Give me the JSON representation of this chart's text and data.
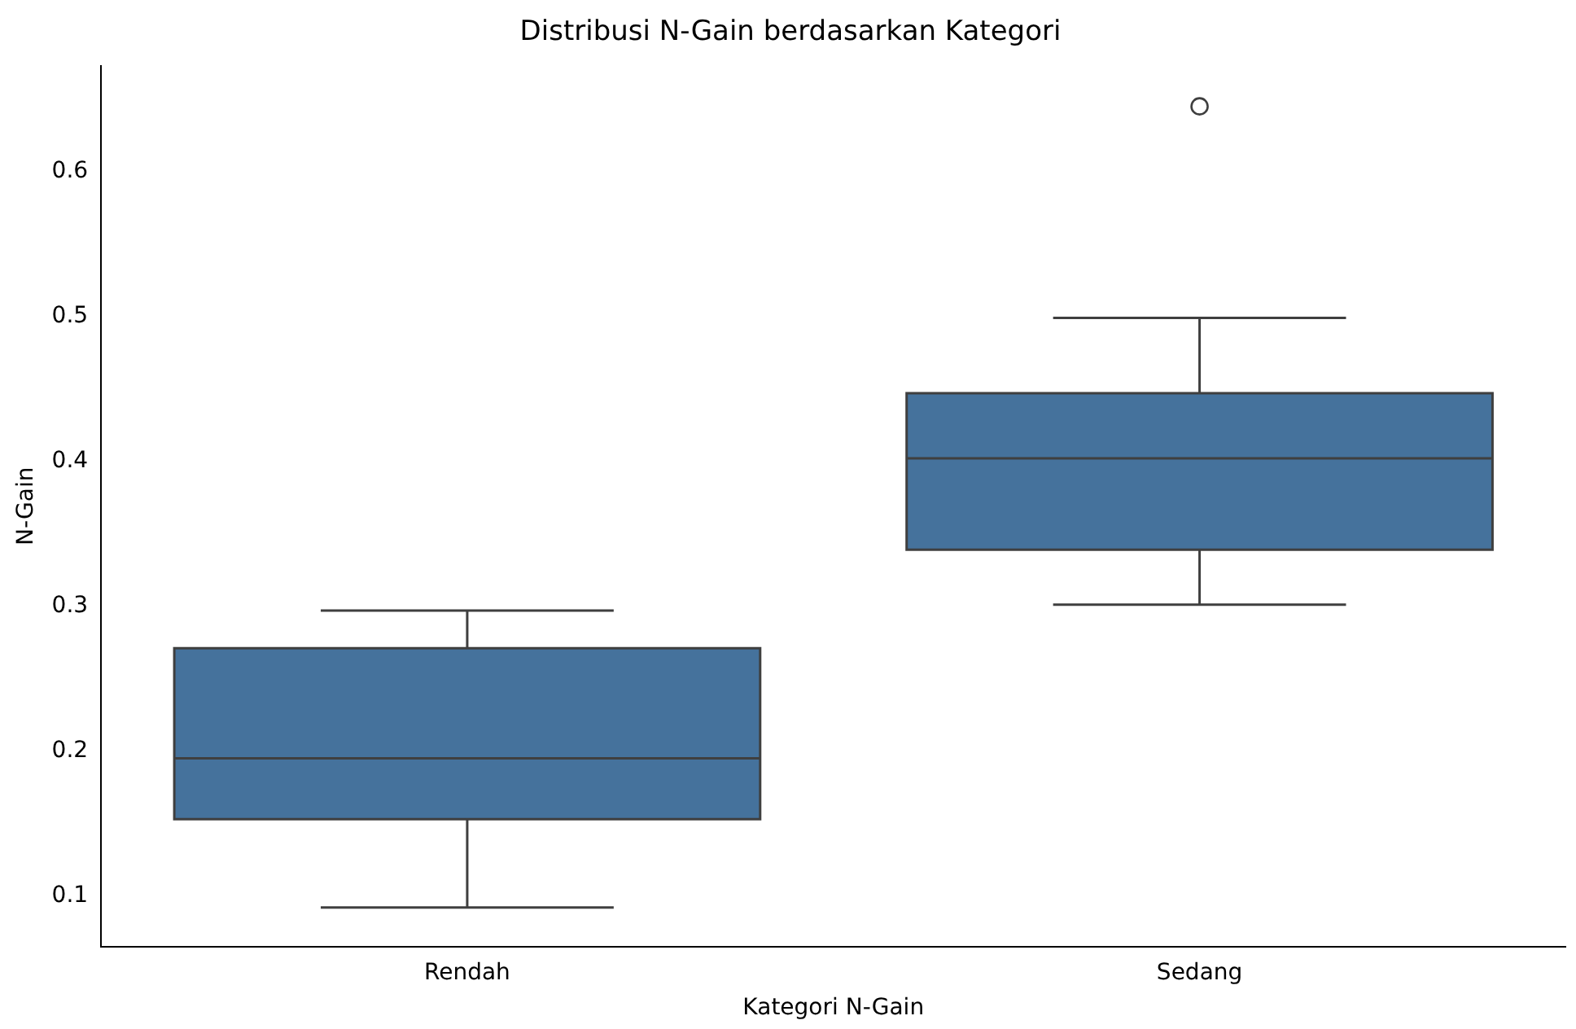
{
  "chart_data": {
    "type": "box",
    "title": "Distribusi N-Gain berdasarkan Kategori",
    "xlabel": "Kategori N-Gain",
    "ylabel": "N-Gain",
    "categories": [
      "Rendah",
      "Sedang"
    ],
    "series": [
      {
        "color": "#45729c",
        "boxes": [
          {
            "low": 0.092,
            "q1": 0.153,
            "median": 0.195,
            "q3": 0.271,
            "high": 0.297
          },
          {
            "low": 0.301,
            "q1": 0.339,
            "median": 0.402,
            "q3": 0.447,
            "high": 0.499,
            "outliers": [
              0.645
            ]
          }
        ]
      }
    ],
    "ylim": [
      0.065,
      0.673
    ],
    "yticks": [
      0.1,
      0.2,
      0.3,
      0.4,
      0.5,
      0.6
    ]
  }
}
